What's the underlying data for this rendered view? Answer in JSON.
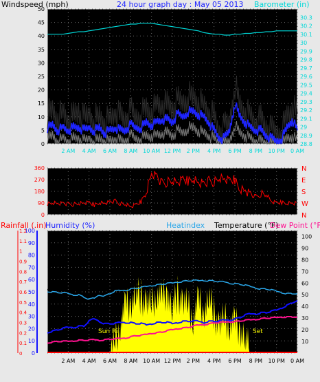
{
  "colors": {
    "panel_bg": "#000000",
    "frame": "#e8e8e8",
    "grid": "#6e6e6e",
    "wind_gust": "#000000",
    "wind_avg": "#1e24ff",
    "wind_min": "#777777",
    "barometer": "#00d8d8",
    "wind_dir": "#ff0000",
    "temperature": "#000000",
    "heatindex": "#2aa6e8",
    "humidity": "#1010ff",
    "dewpoint": "#ff1090",
    "solar": "#ffff00",
    "rain": "#ff0000",
    "compass": "#ff0000"
  },
  "header": {
    "wind_label": "Windspeed (mph)",
    "title": "24 hour graph day : May 05 2013",
    "baro_label": "Barometer (in)"
  },
  "bottom_header": {
    "rainfall": "Rainfall (.in)",
    "humidity": "Humidity (%)",
    "heatindex": "Heatindex",
    "temperature": "Temperature (°F)",
    "dewpoint": "Dew Point (°F)"
  },
  "sun_labels": {
    "rise": "Sun Ri",
    "set": "Set"
  },
  "chart_data": [
    {
      "type": "line",
      "title": "24 hour graph day : May 05 2013",
      "x_hours": [
        0,
        0.5,
        1,
        1.5,
        2,
        2.5,
        3,
        3.5,
        4,
        4.5,
        5,
        5.5,
        6,
        6.5,
        7,
        7.5,
        8,
        8.5,
        9,
        9.5,
        10,
        10.5,
        11,
        11.5,
        12,
        12.5,
        13,
        13.5,
        14,
        14.5,
        15,
        15.5,
        16,
        16.5,
        17,
        17.5,
        18,
        18.5,
        19,
        19.5,
        20,
        20.5,
        21,
        21.5,
        22,
        22.5,
        23,
        23.5,
        24
      ],
      "x_ticks": [
        "2 AM",
        "4 AM",
        "6 AM",
        "8 AM",
        "10 AM",
        "12 PM",
        "2 PM",
        "4 PM",
        "6 PM",
        "8 PM",
        "10 PM",
        "0 AM"
      ],
      "ylabel_left": "Windspeed (mph)",
      "ylim_left": [
        0,
        50
      ],
      "yticks_left": [
        0,
        5,
        10,
        15,
        20,
        25,
        30,
        35,
        40,
        45,
        50
      ],
      "ylabel_right": "Barometer (in)",
      "ylim_right": [
        28.8,
        30.4
      ],
      "yticks_right": [
        "28.8",
        "28.9",
        "29",
        "29.1",
        "29.2",
        "29.3",
        "29.4",
        "29.5",
        "29.6",
        "29.7",
        "29.8",
        "29.9",
        "30",
        "30.1",
        "30.2",
        "30.3"
      ],
      "series": [
        {
          "values": [
            11,
            12,
            10,
            11,
            9,
            10,
            12,
            9,
            11,
            9,
            10,
            8,
            9,
            12,
            10,
            9,
            12,
            10,
            11,
            13,
            12,
            14,
            15,
            14,
            13,
            16,
            15,
            18,
            17,
            16,
            14,
            12,
            10,
            4,
            6,
            8,
            22,
            14,
            12,
            10,
            8,
            9,
            6,
            5,
            4,
            5,
            10,
            14,
            11
          ]
        },
        {
          "values": [
            6,
            7,
            5,
            6,
            5,
            6,
            6,
            5,
            6,
            5,
            6,
            4,
            5,
            6,
            5,
            5,
            7,
            6,
            6,
            8,
            7,
            8,
            9,
            9,
            8,
            11,
            10,
            12,
            12,
            11,
            10,
            8,
            5,
            2,
            2,
            5,
            15,
            10,
            8,
            6,
            5,
            5,
            3,
            2,
            1,
            2,
            6,
            9,
            5
          ]
        },
        {
          "values": [
            2,
            3,
            1,
            2,
            1,
            2,
            2,
            1,
            2,
            1,
            2,
            1,
            1,
            2,
            1,
            1,
            3,
            2,
            2,
            3,
            3,
            3,
            4,
            4,
            3,
            5,
            4,
            6,
            6,
            5,
            4,
            3,
            2,
            0,
            0,
            1,
            7,
            4,
            3,
            2,
            1,
            1,
            0,
            0,
            0,
            0,
            2,
            3,
            1
          ]
        },
        {
          "values": [
            30.1,
            30.1,
            30.1,
            30.1,
            30.11,
            30.12,
            30.13,
            30.13,
            30.14,
            30.15,
            30.16,
            30.17,
            30.18,
            30.19,
            30.2,
            30.21,
            30.22,
            30.22,
            30.23,
            30.23,
            30.23,
            30.22,
            30.21,
            30.2,
            30.19,
            30.18,
            30.17,
            30.16,
            30.15,
            30.14,
            30.12,
            30.11,
            30.1,
            30.1,
            30.09,
            30.09,
            30.1,
            30.1,
            30.11,
            30.11,
            30.12,
            30.12,
            30.13,
            30.13,
            30.14,
            30.14,
            30.14,
            30.14,
            30.14
          ]
        }
      ]
    },
    {
      "type": "line",
      "ylim": [
        0,
        360
      ],
      "yticks": [
        0,
        90,
        180,
        270,
        360
      ],
      "compass_labels": [
        "N",
        "W",
        "S",
        "E",
        "N"
      ],
      "series": [
        {
          "values": [
            85,
            95,
            88,
            90,
            82,
            80,
            85,
            88,
            92,
            75,
            95,
            90,
            100,
            105,
            85,
            80,
            60,
            75,
            100,
            180,
            320,
            300,
            240,
            250,
            260,
            240,
            270,
            260,
            280,
            250,
            240,
            260,
            250,
            280,
            270,
            260,
            270,
            200,
            190,
            160,
            140,
            150,
            160,
            100,
            90,
            95,
            90,
            92,
            88
          ]
        }
      ]
    },
    {
      "type": "line",
      "ylabel_left_outer": "Rainfall (.in)",
      "ylim_rain": [
        0,
        1.2
      ],
      "yticks_rain": [
        "0",
        "0.1",
        "0.2",
        "0.3",
        "0.4",
        "0.5",
        "0.6",
        "0.7",
        "0.8",
        "0.9",
        "1",
        "1.1",
        "1.2"
      ],
      "ylabel_left": "Humidity (%)",
      "ylim_humidity": [
        0,
        100
      ],
      "yticks_humidity": [
        0,
        10,
        20,
        30,
        40,
        50,
        60,
        70,
        80,
        90,
        100
      ],
      "ylabel_right": "Temperature (°F)",
      "ylim_temp": [
        0,
        105
      ],
      "yticks_temp": [
        10,
        20,
        30,
        40,
        50,
        60,
        70,
        80,
        90,
        100
      ],
      "series": [
        {
          "name": "Heatindex",
          "values": [
            53,
            52.5,
            52,
            51.5,
            51,
            50,
            50,
            48,
            46,
            47,
            50,
            49,
            51,
            53,
            53.5,
            54,
            55,
            55.5,
            56,
            57,
            58,
            58.5,
            59,
            59.5,
            60,
            61,
            61.5,
            62,
            62,
            62,
            62.5,
            62,
            62,
            61,
            61,
            60,
            59.5,
            59,
            58,
            57,
            56,
            55,
            55,
            54,
            53,
            52,
            51,
            51,
            51
          ]
        },
        {
          "name": "Temperature (°F)",
          "values": [
            55,
            54.5,
            54,
            53.5,
            53,
            52,
            52,
            50,
            48,
            49,
            52,
            51,
            53,
            55,
            55.5,
            56,
            57,
            57.5,
            58,
            59,
            60,
            60.5,
            61,
            61.5,
            62,
            63,
            63.5,
            64,
            64,
            64,
            64.5,
            64,
            64,
            63,
            63,
            62,
            61.5,
            61,
            60,
            59,
            58,
            57,
            57,
            56,
            55,
            54,
            53,
            53,
            53
          ]
        },
        {
          "name": "Humidity (%)",
          "values": [
            17,
            18,
            19,
            20,
            21,
            21,
            22,
            22,
            26,
            28,
            26,
            24,
            24,
            24,
            25,
            25,
            25,
            24,
            24,
            23,
            24,
            25,
            25,
            25,
            24,
            25,
            26,
            26,
            26,
            26,
            25,
            26,
            26,
            26,
            27,
            27,
            28,
            29,
            31,
            32,
            32,
            33,
            33,
            34,
            35,
            37,
            39,
            41,
            43
          ]
        },
        {
          "name": "Dew Point (°F)",
          "values": [
            9,
            9.5,
            10,
            10,
            10,
            10.5,
            11,
            11,
            11,
            11.5,
            11,
            11.5,
            12,
            12,
            12.5,
            13,
            14,
            15,
            15,
            16,
            17,
            17.5,
            18,
            19,
            20,
            21,
            21.5,
            22,
            23,
            24,
            24.5,
            25,
            26,
            26,
            26.5,
            27,
            27,
            27.5,
            28,
            28.5,
            29,
            29.5,
            30,
            30,
            30.5,
            31,
            31,
            31,
            31
          ]
        },
        {
          "values": [
            0,
            0,
            0,
            0,
            0,
            0,
            0,
            0,
            0,
            0,
            0,
            0,
            0,
            0.1,
            0.3,
            0.45,
            0.5,
            0.58,
            0.55,
            0.5,
            0.45,
            0.6,
            0.52,
            0.62,
            0.42,
            0.58,
            0.5,
            0.45,
            0.35,
            0.5,
            0.4,
            0.55,
            0.38,
            0.28,
            0.32,
            0.3,
            0.28,
            0.25,
            0.15,
            0,
            0,
            0,
            0,
            0,
            0,
            0,
            0,
            0,
            0
          ]
        },
        {
          "values": [
            0,
            0,
            0,
            0,
            0,
            0,
            0,
            0,
            0,
            0,
            0,
            0,
            0,
            0,
            0,
            0,
            0,
            0,
            0,
            0,
            0,
            0,
            0,
            0,
            0,
            0,
            0,
            0,
            0,
            0,
            0,
            0,
            0,
            0,
            0,
            0,
            0,
            0,
            0,
            0,
            0,
            0,
            0,
            0,
            0,
            0,
            0,
            0,
            0
          ]
        }
      ]
    }
  ]
}
